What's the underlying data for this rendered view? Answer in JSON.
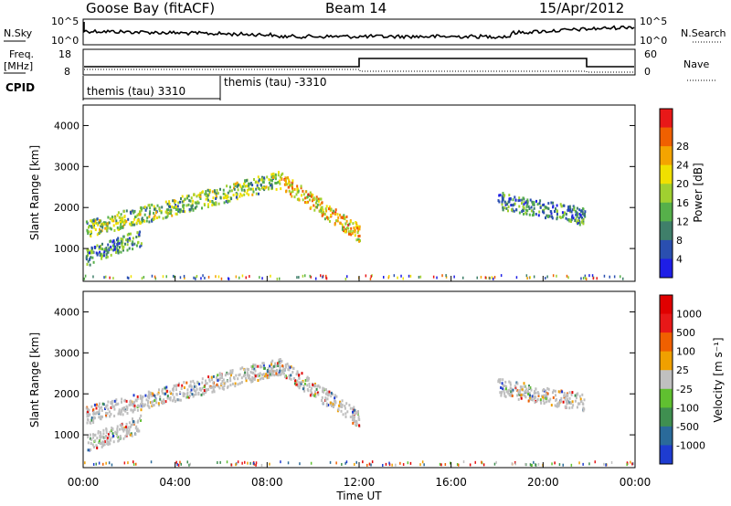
{
  "header": {
    "station": "Goose Bay (fitACF)",
    "beam": "Beam 14",
    "date": "15/Apr/2012"
  },
  "param_panel": {
    "nsky_label": "N.Sky",
    "nsky_ticks": [
      "10^5",
      "10^0"
    ],
    "nsearch_label": "N.Search",
    "nsearch_ticks": [
      "10^5",
      "10^0"
    ],
    "freq_label": "Freq.",
    "freq_unit": "[MHz]",
    "freq_ticks": [
      "18",
      "8"
    ],
    "nave_label": "Nave",
    "nave_ticks": [
      "60",
      "0"
    ],
    "cpid_label": "CPID",
    "cpid_segments": [
      {
        "label": "themis (tau) 3310",
        "start_hour": 0
      },
      {
        "label": "themis (tau) -3310",
        "start_hour": 6
      }
    ]
  },
  "chart_data": [
    {
      "type": "heatmap",
      "parameter": "Power",
      "ylabel": "Slant Range [km]",
      "ylim": [
        200,
        4500
      ],
      "yticks": [
        1000,
        2000,
        3000,
        4000
      ],
      "xlabel": "Time UT",
      "xlim_hours": [
        0,
        24
      ],
      "xtick_labels": [
        "00:00",
        "04:00",
        "08:00",
        "12:00",
        "16:00",
        "20:00",
        "00:00"
      ],
      "colorbar": {
        "label": "Power [dB]",
        "ticks": [
          "4",
          "8",
          "12",
          "16",
          "20",
          "24",
          "28"
        ],
        "colors": [
          "#1e1ee6",
          "#2a4fb0",
          "#3f7f6a",
          "#56b04a",
          "#a0d030",
          "#f0e000",
          "#f4a400",
          "#f06000",
          "#e81818"
        ]
      },
      "scatter_bands": [
        {
          "from_hour": 0.1,
          "to_hour": 8.5,
          "range_start": 1500,
          "range_end": 2700,
          "level": "low-mid"
        },
        {
          "from_hour": 8.5,
          "to_hour": 12.0,
          "range_start": 2700,
          "range_end": 1400,
          "level": "mid-high"
        },
        {
          "from_hour": 0.1,
          "to_hour": 2.5,
          "range_start": 800,
          "range_end": 1300,
          "level": "low"
        },
        {
          "from_hour": 18.0,
          "to_hour": 21.8,
          "range_start": 2200,
          "range_end": 1800,
          "level": "low"
        }
      ]
    },
    {
      "type": "heatmap",
      "parameter": "Velocity",
      "ylabel": "Slant Range [km]",
      "ylim": [
        200,
        4500
      ],
      "yticks": [
        1000,
        2000,
        3000,
        4000
      ],
      "xlabel": "Time UT",
      "xlim_hours": [
        0,
        24
      ],
      "xtick_labels": [
        "00:00",
        "04:00",
        "08:00",
        "12:00",
        "16:00",
        "20:00",
        "00:00"
      ],
      "colorbar": {
        "label": "Velocity [m s⁻¹]",
        "ticks": [
          "1000",
          "500",
          "100",
          "25",
          "-25",
          "-100",
          "-500",
          "-1000"
        ],
        "colors": [
          "#1e3cd0",
          "#2a6a9a",
          "#3f8f50",
          "#60c030",
          "#c0c0c0",
          "#f0a000",
          "#f06000",
          "#e81818",
          "#e00000"
        ]
      },
      "ground_scatter_color": "#bebebe"
    }
  ]
}
